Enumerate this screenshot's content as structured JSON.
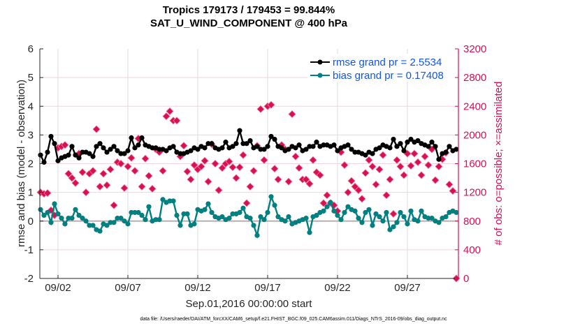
{
  "chart_data": {
    "type": "line",
    "title": [
      "Tropics 179173 / 179453 = 99.844%",
      "SAT_U_WIND_COMPONENT @ 400 hPa"
    ],
    "xlabel": "Sep.01,2016 00:00:00 start",
    "ylabel": "rmse and bias (model - observation)",
    "ylabel_right": "# of obs: o=possible; ×=assimilated",
    "footnote": "data file: /Users/raeder/DAI/ATM_forcXX/CAM6_setup/f.e21.FHIST_BGC.f09_025.CAM6assim.011/Diags_NTrS_2016-09/obs_diag_output.nc",
    "xlim_days": [
      -0.3,
      29.65
    ],
    "x_start_day": -0.25,
    "x_step_day": 0.25,
    "x_ticks": [
      {
        "day": 1,
        "label": "09/02"
      },
      {
        "day": 6,
        "label": "09/07"
      },
      {
        "day": 11,
        "label": "09/12"
      },
      {
        "day": 16,
        "label": "09/17"
      },
      {
        "day": 21,
        "label": "09/22"
      },
      {
        "day": 26,
        "label": "09/27"
      }
    ],
    "ylim": [
      -2,
      6
    ],
    "y_ticks": [
      "-2",
      "-1",
      "0",
      "1",
      "2",
      "3",
      "4",
      "5",
      "6"
    ],
    "ylim_right": [
      0,
      3200
    ],
    "y_ticks_right": [
      "0",
      "400",
      "800",
      "1200",
      "1600",
      "2000",
      "2400",
      "2800",
      "3200"
    ],
    "grid": true,
    "legend_position": "top-right",
    "colors": {
      "rmse": "#000000",
      "bias": "#008080",
      "obs": "#d6114f",
      "axis_right": "#d01257",
      "legend_text": "#1155ee",
      "zero_line": "#b8b0b0"
    },
    "series": [
      {
        "name": "rmse grand pr = 2.5534",
        "key": "rmse",
        "axis": "left",
        "values": [
          2.3,
          2.05,
          2.4,
          2.95,
          2.7,
          2.1,
          2.2,
          2.25,
          2.3,
          2.6,
          2.3,
          2.2,
          2.4,
          2.4,
          2.35,
          2.25,
          2.6,
          2.7,
          2.55,
          2.4,
          2.5,
          2.6,
          2.45,
          2.35,
          2.35,
          2.45,
          2.9,
          2.55,
          2.65,
          2.9,
          2.65,
          2.6,
          2.55,
          2.55,
          2.5,
          2.5,
          2.45,
          2.55,
          2.6,
          2.4,
          2.35,
          2.35,
          2.4,
          2.45,
          2.55,
          2.5,
          2.6,
          2.55,
          2.7,
          2.7,
          2.55,
          2.5,
          2.55,
          2.75,
          2.55,
          2.6,
          2.7,
          3.15,
          2.7,
          2.7,
          2.8,
          2.55,
          2.6,
          2.5,
          2.5,
          2.6,
          2.95,
          2.85,
          2.6,
          2.55,
          2.45,
          2.5,
          2.6,
          2.55,
          2.65,
          2.45,
          2.5,
          2.6,
          2.6,
          2.75,
          2.6,
          2.65,
          2.65,
          2.6,
          2.65,
          2.45,
          2.55,
          2.6,
          2.65,
          2.5,
          2.4,
          2.4,
          2.35,
          2.3,
          2.4,
          2.35,
          2.5,
          2.55,
          2.65,
          2.6,
          2.55,
          2.85,
          2.6,
          2.7,
          2.45,
          2.75,
          2.85,
          2.75,
          2.8,
          2.7,
          2.65,
          2.6,
          2.75,
          2.6,
          2.15,
          2.35,
          2.4,
          2.6,
          2.45,
          2.5
        ]
      },
      {
        "name": "bias grand pr = 0.17408",
        "key": "bias",
        "axis": "left",
        "values": [
          0.4,
          0.2,
          0.3,
          -0.05,
          0.6,
          0.25,
          0.1,
          -0.1,
          0.1,
          0.1,
          0.4,
          0.2,
          0.1,
          0.0,
          -0.15,
          -0.15,
          -0.3,
          -0.35,
          -0.1,
          -0.15,
          -0.05,
          -0.05,
          0.1,
          0.1,
          0.0,
          -0.1,
          0.3,
          0.3,
          0.3,
          0.2,
          0.05,
          0.5,
          0.0,
          0.05,
          0.05,
          0.75,
          0.65,
          0.7,
          0.7,
          0.2,
          -0.15,
          0.25,
          0.25,
          -0.15,
          -0.1,
          0.4,
          0.35,
          0.4,
          0.6,
          0.3,
          0.15,
          0.1,
          0.15,
          0.05,
          0.1,
          0.25,
          0.25,
          0.3,
          0.45,
          0.15,
          0.1,
          -0.15,
          -0.5,
          0.15,
          0.05,
          0.3,
          0.85,
          0.55,
          0.15,
          0.05,
          0.0,
          0.15,
          -0.1,
          -0.05,
          0.0,
          0.05,
          0.1,
          -0.4,
          0.15,
          0.2,
          0.3,
          0.35,
          0.5,
          0.65,
          0.35,
          0.2,
          0.05,
          0.3,
          0.5,
          0.4,
          0.35,
          0.1,
          -0.05,
          0.3,
          0.4,
          -0.15,
          0.25,
          0.15,
          0.0,
          0.3,
          -0.3,
          -0.2,
          -0.05,
          0.3,
          0.15,
          -0.1,
          0.35,
          0.05,
          0.0,
          0.35,
          0.15,
          0.1,
          0.1,
          0.0,
          -0.05,
          0.1,
          0.15,
          0.3,
          0.35,
          0.3
        ]
      },
      {
        "name": "obs assimilated",
        "key": "obs",
        "axis": "right",
        "values": [
          1200,
          1180,
          1190,
          950,
          880,
          1820,
          1840,
          1860,
          1460,
          1400,
          1330,
          1740,
          1480,
          1200,
          1460,
          1500,
          2080,
          1280,
          1460,
          1300,
          1520,
          1020,
          1620,
          1600,
          1260,
          1560,
          1680,
          1500,
          1950,
          1280,
          1670,
          1430,
          1250,
          1800,
          1760,
          1500,
          2260,
          2330,
          2200,
          2200,
          1700,
          1850,
          1490,
          1380,
          1580,
          1520,
          1560,
          1640,
          1350,
          1870,
          1600,
          1230,
          1540,
          1600,
          1630,
          1550,
          1400,
          1550,
          1720,
          1050,
          1280,
          1500,
          1850,
          2360,
          1650,
          2400,
          2420,
          1530,
          1380,
          1860,
          1800,
          1350,
          2290,
          1700,
          1540,
          1380,
          1380,
          1320,
          1650,
          1480,
          1440,
          1050,
          1160,
          1050,
          1020,
          940,
          1760,
          1580,
          1200,
          1360,
          1280,
          1230,
          1110,
          1470,
          1650,
          1560,
          1310,
          1520,
          1720,
          1160,
          1380,
          900,
          1650,
          1560,
          1440,
          1740,
          1570,
          1740,
          1620,
          1440,
          1700,
          1580,
          1800,
          1370,
          1560,
          1660,
          1750,
          1310,
          1220,
          0
        ]
      }
    ],
    "legend": [
      "rmse grand pr = 2.5534",
      "bias grand pr = 0.17408"
    ]
  }
}
